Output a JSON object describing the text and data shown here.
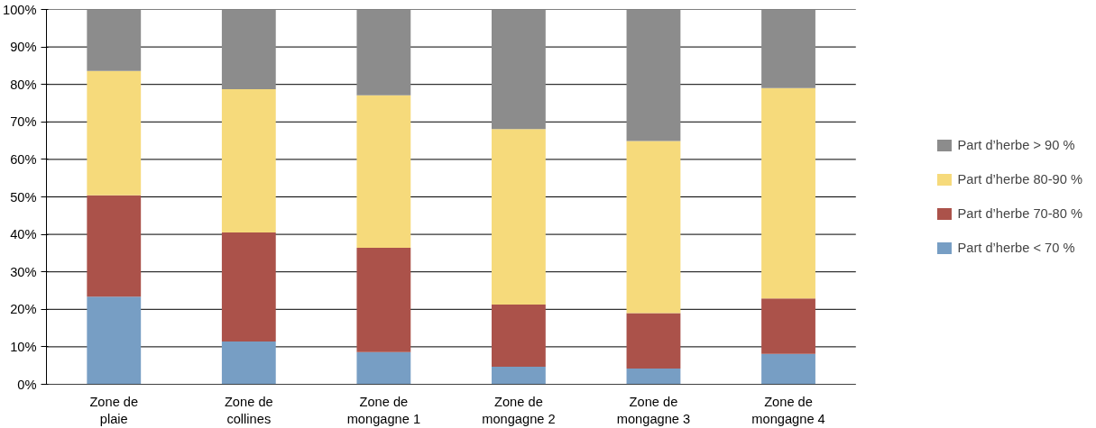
{
  "chart_data": {
    "type": "bar",
    "stacked": true,
    "categories": [
      "Zone de plaie",
      "Zone de collines",
      "Zone de mongagne 1",
      "Zone de mongagne 2",
      "Zone de mongagne 3",
      "Zone de mongagne 4"
    ],
    "series": [
      {
        "name": "Part d’herbe < 70 %",
        "color": "#779ec4",
        "values": [
          23.4,
          11.4,
          8.6,
          4.7,
          4.2,
          8.1
        ]
      },
      {
        "name": "Part d’herbe 70-80 %",
        "color": "#ab524a",
        "values": [
          27.0,
          29.1,
          27.8,
          16.6,
          14.8,
          14.8
        ]
      },
      {
        "name": "Part d’herbe 80-90 %",
        "color": "#f6da7b",
        "values": [
          33.2,
          38.2,
          40.7,
          46.8,
          45.9,
          56.1
        ]
      },
      {
        "name": "Part d’herbe > 90 %",
        "color": "#8c8c8c",
        "values": [
          16.4,
          21.3,
          22.9,
          31.9,
          35.1,
          21.0
        ]
      }
    ],
    "ylim": [
      0,
      100
    ],
    "yticks": [
      {
        "value": 0,
        "label": "0%"
      },
      {
        "value": 10,
        "label": "10%"
      },
      {
        "value": 20,
        "label": "20%"
      },
      {
        "value": 30,
        "label": "30%"
      },
      {
        "value": 40,
        "label": "40%"
      },
      {
        "value": 50,
        "label": "50%"
      },
      {
        "value": 60,
        "label": "60%"
      },
      {
        "value": 70,
        "label": "70%"
      },
      {
        "value": 80,
        "label": "80%"
      },
      {
        "value": 90,
        "label": "90%"
      },
      {
        "value": 100,
        "label": "100%"
      }
    ],
    "grid": "y",
    "legend": "right"
  }
}
